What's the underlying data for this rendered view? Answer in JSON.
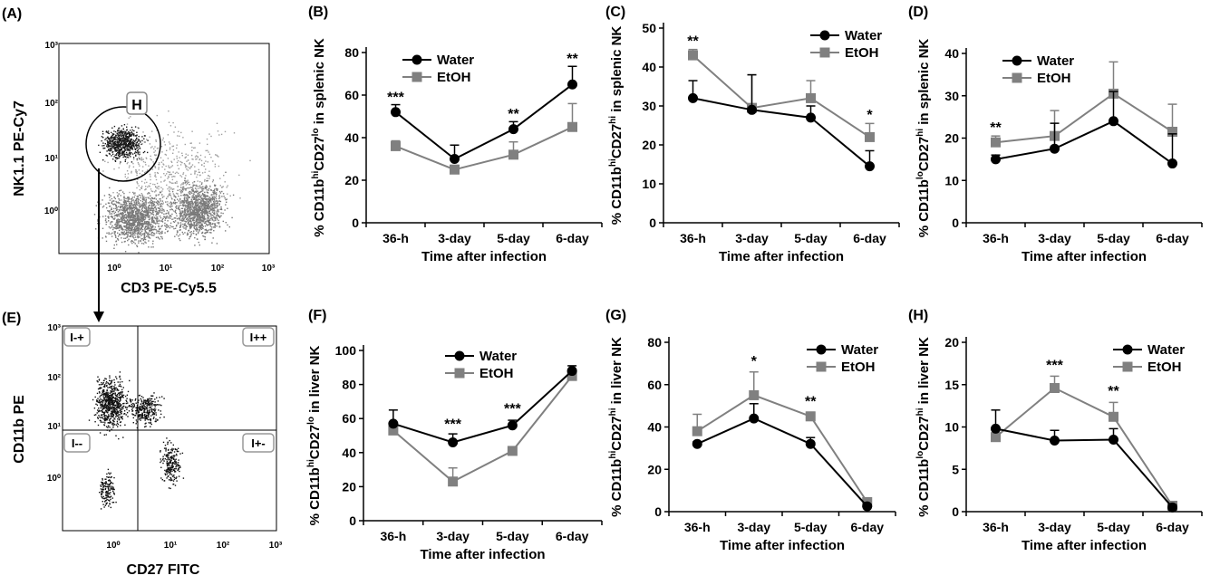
{
  "figure": {
    "panels": [
      {
        "id": "A",
        "label": "(A)",
        "kind": "flow",
        "xlabel": "CD3 PE-Cy5.5",
        "ylabel": "NK1.1 PE-Cy7",
        "ticks": [
          "10⁰",
          "10¹",
          "10²",
          "10³"
        ],
        "gate": "H"
      },
      {
        "id": "E",
        "label": "(E)",
        "kind": "flow",
        "xlabel": "CD27 FITC",
        "ylabel": "CD11b PE",
        "ticks": [
          "10⁰",
          "10¹",
          "10²",
          "10³"
        ],
        "quadrants": [
          "I-+",
          "I++",
          "I--",
          "I+-"
        ]
      }
    ]
  },
  "chart_data": [
    {
      "id": "B",
      "label": "(B)",
      "type": "line",
      "categories": [
        "36-h",
        "3-day",
        "5-day",
        "6-day"
      ],
      "ylabel_parts": [
        "% CD11b",
        "hi",
        "CD27",
        "lo",
        " in splenic NK"
      ],
      "xlabel": "Time after infection",
      "ylim": [
        0,
        80
      ],
      "yticks": [
        0,
        20,
        40,
        60,
        80
      ],
      "legend": "top-left",
      "series": [
        {
          "name": "Water",
          "values": [
            52,
            30,
            44,
            65
          ],
          "err": [
            3.5,
            6.5,
            3.5,
            8.5
          ]
        },
        {
          "name": "EtOH",
          "values": [
            36,
            25,
            32,
            45
          ],
          "err": [
            2.5,
            2,
            6,
            11
          ]
        }
      ],
      "annotations": [
        {
          "cat": 0,
          "value": 56,
          "text": "***"
        },
        {
          "cat": 2,
          "value": 48,
          "text": "**"
        },
        {
          "cat": 3,
          "value": 74,
          "text": "**"
        }
      ]
    },
    {
      "id": "C",
      "label": "(C)",
      "type": "line",
      "categories": [
        "36-h",
        "3-day",
        "5-day",
        "6-day"
      ],
      "ylabel_parts": [
        "% CD11b",
        "hi",
        "CD27",
        "hi",
        " in splenic NK"
      ],
      "xlabel": "Time after infection",
      "ylim": [
        0,
        50
      ],
      "yticks": [
        0,
        10,
        20,
        30,
        40,
        50
      ],
      "legend": "top-right",
      "series": [
        {
          "name": "Water",
          "values": [
            32,
            29,
            27,
            14.5
          ],
          "err": [
            4.5,
            9,
            3,
            4
          ]
        },
        {
          "name": "EtOH",
          "values": [
            43,
            29.5,
            32,
            22
          ],
          "err": [
            1.5,
            8.5,
            4.5,
            3.5
          ]
        }
      ],
      "annotations": [
        {
          "cat": 0,
          "value": 45,
          "text": "**"
        },
        {
          "cat": 3,
          "value": 26,
          "text": "*"
        }
      ]
    },
    {
      "id": "D",
      "label": "(D)",
      "type": "line",
      "categories": [
        "36-h",
        "3-day",
        "5-day",
        "6-day"
      ],
      "ylabel_parts": [
        "% CD11b",
        "lo",
        "CD27",
        "hi",
        " in splenic NK"
      ],
      "xlabel": "Time after infection",
      "ylim": [
        0,
        40
      ],
      "yticks": [
        0,
        10,
        20,
        30,
        40
      ],
      "legend": "top-left",
      "series": [
        {
          "name": "Water",
          "values": [
            15,
            17.5,
            24,
            14
          ],
          "err": [
            1,
            6,
            7,
            7
          ]
        },
        {
          "name": "EtOH",
          "values": [
            19,
            20.5,
            30.5,
            21.5
          ],
          "err": [
            1.5,
            6,
            7.5,
            6.5
          ]
        }
      ],
      "annotations": [
        {
          "cat": 0,
          "value": 21,
          "text": "**"
        }
      ]
    },
    {
      "id": "F",
      "label": "(F)",
      "type": "line",
      "categories": [
        "36-h",
        "3-day",
        "5-day",
        "6-day"
      ],
      "ylabel_parts": [
        "% CD11b",
        "hi",
        "CD27",
        "lo",
        " in liver NK"
      ],
      "xlabel": "Time after infection",
      "ylim": [
        0,
        100
      ],
      "yticks": [
        0,
        20,
        40,
        60,
        80,
        100
      ],
      "legend": "top-center",
      "series": [
        {
          "name": "Water",
          "values": [
            57,
            46,
            56,
            88
          ],
          "err": [
            8,
            5,
            3,
            3
          ]
        },
        {
          "name": "EtOH",
          "values": [
            53,
            23,
            41,
            85
          ],
          "err": [
            3,
            8,
            2,
            3
          ]
        }
      ],
      "annotations": [
        {
          "cat": 1,
          "value": 53,
          "text": "***"
        },
        {
          "cat": 2,
          "value": 62,
          "text": "***"
        }
      ]
    },
    {
      "id": "G",
      "label": "(G)",
      "type": "line",
      "categories": [
        "36-h",
        "3-day",
        "5-day",
        "6-day"
      ],
      "ylabel_parts": [
        "% CD11b",
        "hi",
        "CD27",
        "hi",
        " in liver NK"
      ],
      "xlabel": "Time after infection",
      "ylim": [
        0,
        80
      ],
      "yticks": [
        0,
        20,
        40,
        60,
        80
      ],
      "legend": "top-right",
      "series": [
        {
          "name": "Water",
          "values": [
            32,
            44,
            32,
            2.5
          ],
          "err": [
            1,
            7,
            3,
            1
          ]
        },
        {
          "name": "EtOH",
          "values": [
            38,
            55,
            45,
            4.5
          ],
          "err": [
            8,
            11,
            2,
            1
          ]
        }
      ],
      "annotations": [
        {
          "cat": 1,
          "value": 68,
          "text": "*"
        },
        {
          "cat": 2,
          "value": 49,
          "text": "**"
        }
      ]
    },
    {
      "id": "H",
      "label": "(H)",
      "type": "line",
      "categories": [
        "36-h",
        "3-day",
        "5-day",
        "6-day"
      ],
      "ylabel_parts": [
        "% CD11b",
        "lo",
        "CD27",
        "hi",
        " in liver NK"
      ],
      "xlabel": "Time after infection",
      "ylim": [
        0,
        20
      ],
      "yticks": [
        0,
        5,
        10,
        15,
        20
      ],
      "legend": "top-right",
      "series": [
        {
          "name": "Water",
          "values": [
            9.8,
            8.4,
            8.5,
            0.5
          ],
          "err": [
            2.2,
            1.2,
            1.3,
            0.3
          ]
        },
        {
          "name": "EtOH",
          "values": [
            8.8,
            14.6,
            11.2,
            0.7
          ],
          "err": [
            0.5,
            1.4,
            1.7,
            0.3
          ]
        }
      ],
      "annotations": [
        {
          "cat": 1,
          "value": 16.5,
          "text": "***"
        },
        {
          "cat": 2,
          "value": 13.5,
          "text": "**"
        }
      ]
    }
  ],
  "colors": {
    "water": "#000000",
    "etoh": "#808080",
    "dots": "#606060",
    "text": "#000000"
  }
}
